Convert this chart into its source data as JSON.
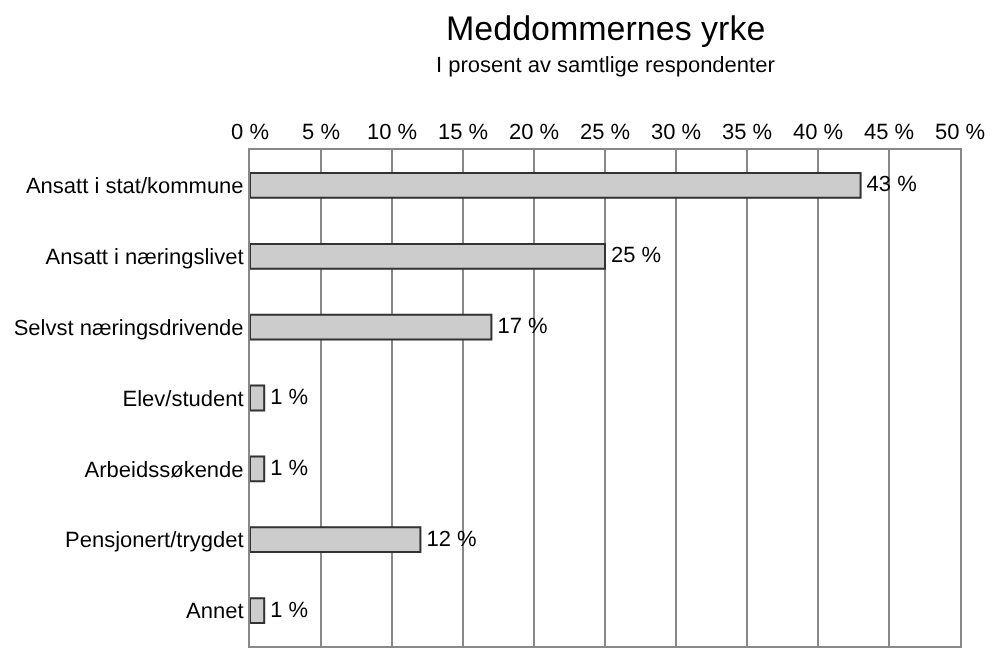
{
  "chart_data": {
    "type": "bar",
    "orientation": "horizontal",
    "title": "Meddommernes yrke",
    "subtitle": "I prosent av samtlige respondenter",
    "categories": [
      "Ansatt i stat/kommune",
      "Ansatt i næringslivet",
      "Selvst næringsdrivende",
      "Elev/student",
      "Arbeidssøkende",
      "Pensjonert/trygdet",
      "Annet"
    ],
    "values": [
      43,
      25,
      17,
      1,
      1,
      12,
      1
    ],
    "value_labels": [
      "43 %",
      "25 %",
      "17 %",
      "1 %",
      "1 %",
      "12 %",
      "1 %"
    ],
    "color": "#cccccc",
    "xlim": [
      0,
      50
    ],
    "xticks": [
      {
        "value": 0,
        "label": "0 %"
      },
      {
        "value": 5,
        "label": "5 %"
      },
      {
        "value": 10,
        "label": "10 %"
      },
      {
        "value": 15,
        "label": "15 %"
      },
      {
        "value": 20,
        "label": "20 %"
      },
      {
        "value": 25,
        "label": "25 %"
      },
      {
        "value": 30,
        "label": "30 %"
      },
      {
        "value": 35,
        "label": "35 %"
      },
      {
        "value": 40,
        "label": "40 %"
      },
      {
        "value": 45,
        "label": "45 %"
      },
      {
        "value": 50,
        "label": "50 %"
      }
    ],
    "grid": "x",
    "legend": false
  }
}
